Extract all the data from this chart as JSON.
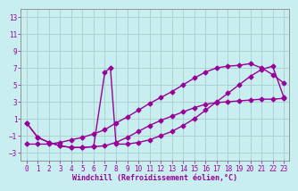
{
  "xlabel": "Windchill (Refroidissement éolien,°C)",
  "background_color": "#c8eef0",
  "line_color": "#990099",
  "grid_color": "#b8d8da",
  "xlim": [
    -0.5,
    23.5
  ],
  "ylim": [
    -4,
    14
  ],
  "yticks": [
    -3,
    -1,
    1,
    3,
    5,
    7,
    9,
    11,
    13
  ],
  "xticks": [
    0,
    1,
    2,
    3,
    4,
    5,
    6,
    7,
    8,
    9,
    10,
    11,
    12,
    13,
    14,
    15,
    16,
    17,
    18,
    19,
    20,
    21,
    22,
    23
  ],
  "line1_x": [
    0,
    1,
    2,
    3,
    4,
    5,
    6,
    7,
    8,
    9,
    10,
    11,
    12,
    13,
    14,
    15,
    16,
    17,
    18,
    19,
    20,
    21,
    22,
    23
  ],
  "line1_y": [
    0.5,
    -1.2,
    -1.8,
    -2.2,
    -2.4,
    -2.4,
    -2.3,
    -2.2,
    -1.8,
    -1.2,
    -0.5,
    0.2,
    0.8,
    1.3,
    1.8,
    2.3,
    2.7,
    2.9,
    3.0,
    3.1,
    3.2,
    3.3,
    3.3,
    3.4
  ],
  "line2_x": [
    0,
    1,
    2,
    3,
    4,
    5,
    6,
    7,
    8,
    9,
    10,
    11,
    12,
    13,
    14,
    15,
    16,
    17,
    18,
    19,
    20,
    21,
    22,
    23
  ],
  "line2_y": [
    -2.0,
    -2.0,
    -2.0,
    -1.8,
    -1.5,
    -1.2,
    -0.8,
    -0.3,
    0.5,
    1.2,
    2.0,
    2.8,
    3.5,
    4.2,
    5.0,
    5.8,
    6.5,
    7.0,
    7.2,
    7.3,
    7.5,
    7.0,
    6.2,
    5.2
  ],
  "line3_x": [
    0,
    1,
    2,
    3,
    4,
    5,
    6,
    7,
    7.5,
    8,
    9,
    10,
    11,
    12,
    13,
    14,
    15,
    16,
    17,
    18,
    19,
    20,
    21,
    22,
    23
  ],
  "line3_y": [
    0.5,
    -1.2,
    -1.8,
    -2.2,
    -2.4,
    -2.4,
    -2.3,
    6.5,
    7.0,
    -2.0,
    -2.0,
    -1.8,
    -1.5,
    -1.0,
    -0.5,
    0.2,
    1.0,
    2.0,
    3.0,
    4.0,
    5.0,
    6.0,
    6.8,
    7.2,
    3.5
  ],
  "marker": "D",
  "markersize": 2.5,
  "linewidth": 1.0,
  "tick_fontsize": 5.5,
  "label_fontsize": 6.0
}
